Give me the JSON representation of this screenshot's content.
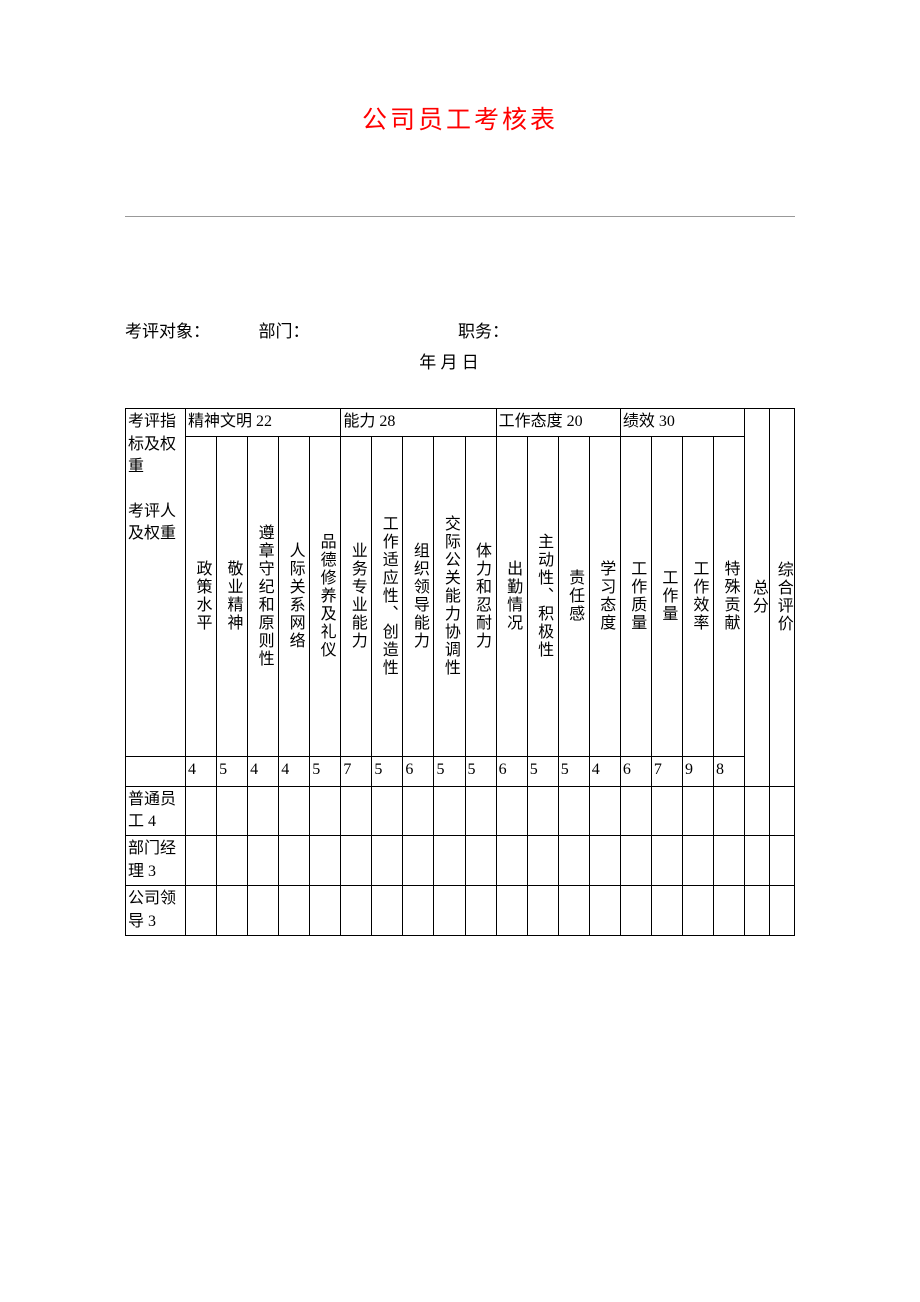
{
  "title": "公司员工考核表",
  "info": {
    "subject": "考评对象：",
    "dept": "部门：",
    "position": "职务：",
    "date": "年 月 日"
  },
  "table": {
    "rowHeader1": "考评指标及权重",
    "rowHeader2": "考评人及权重",
    "groups": [
      {
        "label": "精神文明 22",
        "span": 5
      },
      {
        "label": "能力 28",
        "span": 5
      },
      {
        "label": "工作态度 20",
        "span": 4
      },
      {
        "label": "绩效 30",
        "span": 4
      }
    ],
    "subs": [
      "政策水平",
      "敬业精神",
      "遵章守纪和原则性",
      "人际关系网络",
      "品德修养及礼仪",
      "业务专业能力",
      "工作适应性、创造性",
      "组织领导能力",
      "交际公关能力协调性",
      "体力和忍耐力",
      "出勤情况",
      "主动性、积极性",
      "责任感",
      "学习态度",
      "工作质量",
      "工作量",
      "工作效率",
      "特殊贡献"
    ],
    "weights": [
      "4",
      "5",
      "4",
      "4",
      "5",
      "7",
      "5",
      "6",
      "5",
      "5",
      "6",
      "5",
      "5",
      "4",
      "6",
      "7",
      "9",
      "8"
    ],
    "totalLabel": "总分",
    "evalLabel": "综合评价",
    "raters": [
      "普通员工 4",
      "部门经理 3",
      "公司领导 3"
    ]
  },
  "style": {
    "titleColor": "#ff0000",
    "bgColor": "#ffffff",
    "borderColor": "#000000"
  }
}
